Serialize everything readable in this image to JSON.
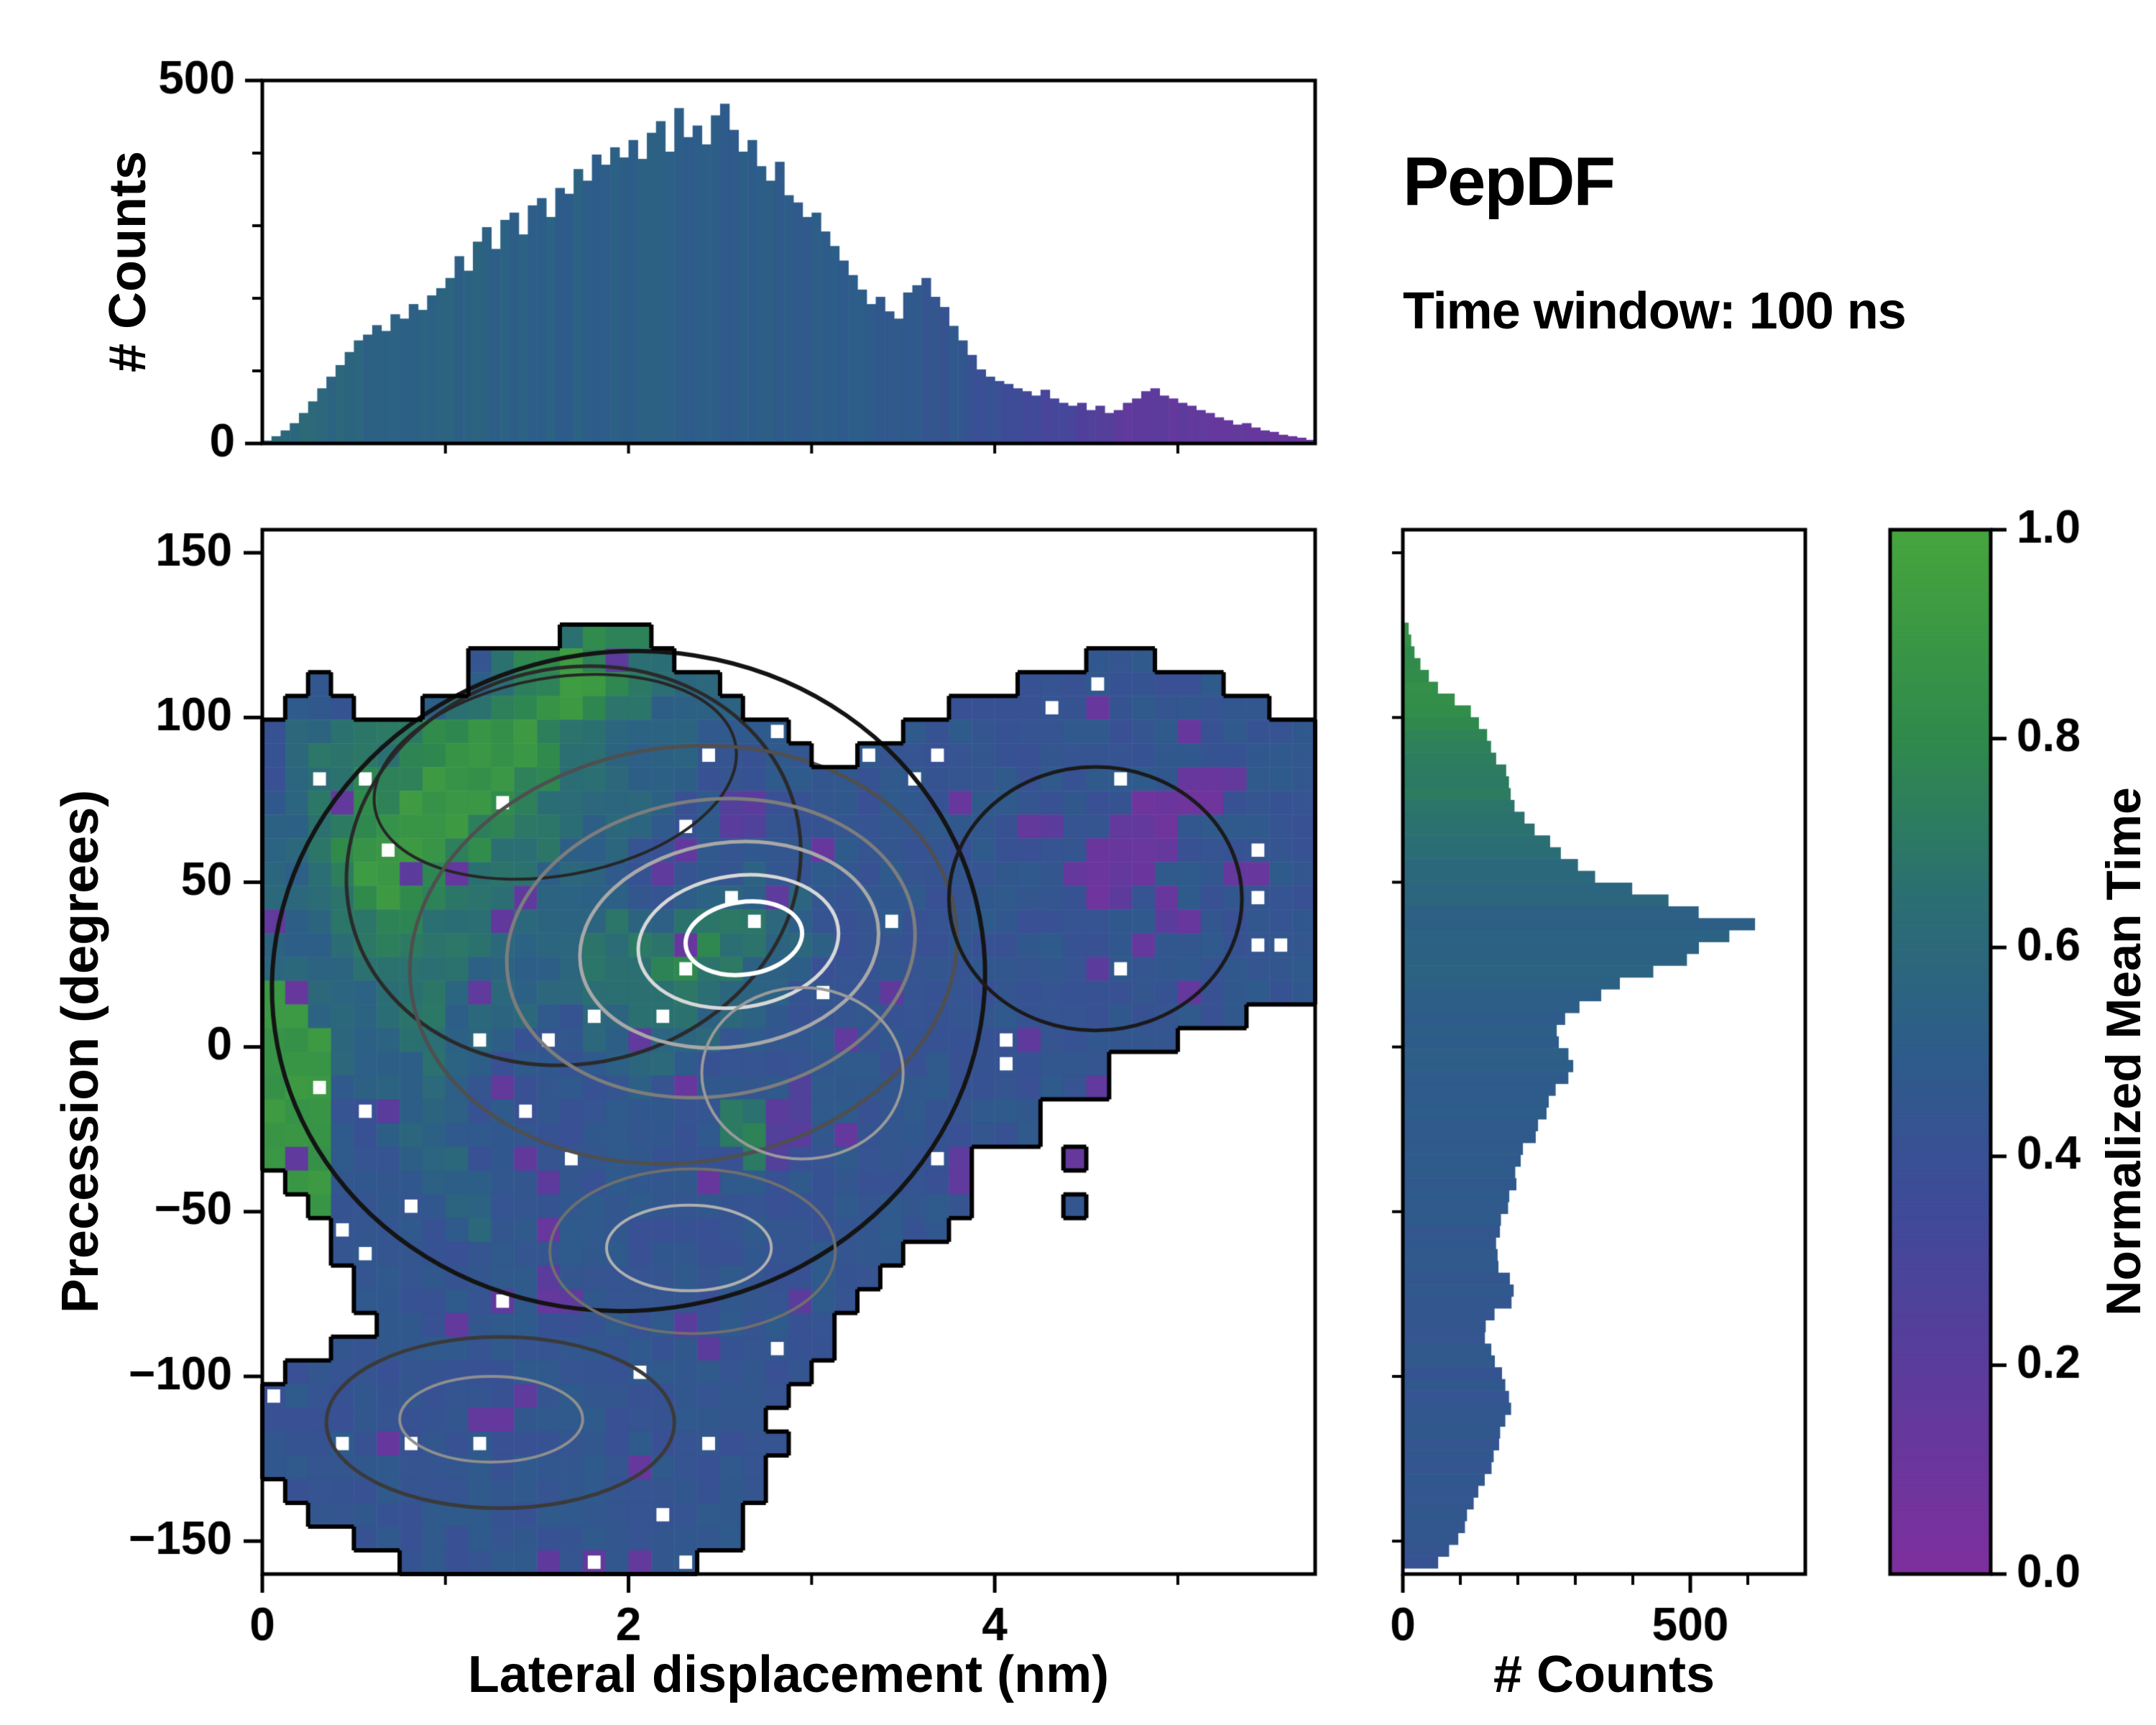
{
  "labels": {
    "title": "PepDF",
    "subtitle": "Time window: 100 ns",
    "top_hist_ylabel": "# Counts",
    "main_ylabel": "Precession (degrees)",
    "main_xlabel": "Lateral displacement (nm)",
    "right_hist_xlabel": "# Counts",
    "colorbar_label": "Normalized Mean Time"
  },
  "chart_data": [
    {
      "type": "bar",
      "name": "top-marginal-histogram",
      "xlabel": "Lateral displacement (nm)",
      "ylabel": "# Counts",
      "xlim": [
        0,
        5.75
      ],
      "ylim": [
        0,
        500
      ],
      "x_start": 0.025,
      "bin_width": 0.05,
      "counts": [
        4,
        10,
        18,
        28,
        42,
        58,
        76,
        92,
        108,
        126,
        142,
        150,
        163,
        155,
        178,
        172,
        192,
        184,
        204,
        214,
        228,
        258,
        238,
        278,
        298,
        268,
        308,
        318,
        288,
        328,
        338,
        312,
        352,
        344,
        378,
        362,
        398,
        384,
        408,
        394,
        418,
        392,
        428,
        444,
        402,
        462,
        422,
        438,
        412,
        452,
        468,
        432,
        402,
        418,
        382,
        362,
        388,
        342,
        332,
        312,
        318,
        292,
        272,
        252,
        232,
        212,
        192,
        202,
        182,
        172,
        208,
        218,
        228,
        202,
        188,
        162,
        142,
        122,
        102,
        92,
        86,
        82,
        76,
        72,
        66,
        74,
        62,
        56,
        52,
        56,
        46,
        52,
        42,
        46,
        56,
        62,
        72,
        76,
        66,
        62,
        56,
        52,
        46,
        42,
        36,
        32,
        26,
        28,
        22,
        18,
        16,
        12,
        10,
        8,
        5
      ],
      "color_value_stops": [
        [
          0,
          0.6
        ],
        [
          0.6,
          0.55
        ],
        [
          2.8,
          0.5
        ],
        [
          3.6,
          0.48
        ],
        [
          4.2,
          0.35
        ],
        [
          4.7,
          0.18
        ],
        [
          5.75,
          0.12
        ]
      ],
      "yticks": [
        {
          "v": 0,
          "label": "0"
        },
        {
          "v": 500,
          "label": "500"
        }
      ],
      "yticks_minor": [
        100,
        200,
        300,
        400
      ],
      "xticks_minor": [
        1,
        2,
        3,
        4,
        5
      ]
    },
    {
      "type": "heatmap",
      "name": "main-2d-histogram",
      "title": "PepDF",
      "subtitle": "Time window: 100 ns",
      "xlabel": "Lateral displacement (nm)",
      "ylabel": "Precession (degrees)",
      "color_label": "Normalized Mean Time",
      "xlim": [
        0,
        5.75
      ],
      "ylim": [
        -160,
        157
      ],
      "grid_cols": 46,
      "grid_rows": 44,
      "encoding": "digit/9 = normalized mean time of bin; '.' = no data",
      "grid": [
        "..............................................",
        "..............................................",
        "..............................................",
        "..............................................",
        ".............6777.............................",
        ".........467787766..................444.......",
        "..4......56778876655.............444444444....",
        ".444...56677887665555.........44444444444444..",
        "45566667788876655554444.....444444444444444444",
        "456666778888766555544444..44444444444444444444",
        "4566777888877665555444444444444444444444111444",
        "4566778888776655554422444444444444444411114444",
        "5566788887766655544422444444444444444111444444",
        "5567888877666555444444444444444444441111444444",
        "5567888776665554444445444444444444411114444444",
        "5566787766665555445555554444444444441144444444",
        "5556677666655556556666554444444444444444144444",
        "5556676666555566667766555444444444444414444444",
        "5555666665555566677665554444444444444444444444",
        "8855566655555566666655544444444444444444444444",
        "8855566655554455666555444444444444444444444...",
        "8885556655544455555544444444444444444444......",
        "8885555655444445554444444444444444444.........",
        "8884555554444444544444424444444444444.........",
        "8884455554444444444466224444444444............",
        "8884455544444444444467224444444444............",
        "8884445554444444444446244444444....4..........",
        ".884444555444444444444444444444...............",
        "..84444455444444444444444444444....4..........",
        "...444444544444444444444444444................",
        "...4444444444444444444444444..................",
        "....44444444444444444444444...................",
        "....4444444444444444444444....................",
        ".....44444444444444444444.....................",
        "...4444444444444444444444.....................",
        ".44444444444444444444444......................",
        "44444444444444444444444.......................",
        "4444444444444444444444........................",
        "44444444444444444444444.......................",
        "4444444444444444444444........................",
        ".444444444444444444444........................",
        "..4444444444444444444.........................",
        "....44444444444444444.........................",
        "......4444444444444..........................."
      ],
      "contours": [
        {
          "cx": 2.0,
          "cy": 20,
          "rx": 1.95,
          "ry": 100,
          "rot": -8,
          "color": "#141414",
          "w": 6
        },
        {
          "cx": 1.7,
          "cy": 55,
          "rx": 1.25,
          "ry": 60,
          "rot": -14,
          "color": "#2a2a2a",
          "w": 5
        },
        {
          "cx": 1.6,
          "cy": 82,
          "rx": 1.0,
          "ry": 30,
          "rot": -10,
          "color": "#262626",
          "w": 4
        },
        {
          "cx": 2.3,
          "cy": 28,
          "rx": 1.5,
          "ry": 63,
          "rot": -8,
          "color": "#4f4f4f",
          "w": 5
        },
        {
          "cx": 2.45,
          "cy": 30,
          "rx": 1.12,
          "ry": 45,
          "rot": -8,
          "color": "#7d7d7d",
          "w": 5
        },
        {
          "cx": 2.55,
          "cy": 31,
          "rx": 0.82,
          "ry": 31,
          "rot": -8,
          "color": "#a8a8a8",
          "w": 5
        },
        {
          "cx": 2.6,
          "cy": 32,
          "rx": 0.55,
          "ry": 20,
          "rot": -8,
          "color": "#d8d8d8",
          "w": 5
        },
        {
          "cx": 2.63,
          "cy": 33,
          "rx": 0.32,
          "ry": 11,
          "rot": -8,
          "color": "#ffffff",
          "w": 6
        },
        {
          "cx": 2.95,
          "cy": -8,
          "rx": 0.55,
          "ry": 26,
          "rot": 0,
          "color": "#9a9a9a",
          "w": 4
        },
        {
          "cx": 2.35,
          "cy": -62,
          "rx": 0.78,
          "ry": 25,
          "rot": 0,
          "color": "#6f6f6f",
          "w": 4
        },
        {
          "cx": 2.33,
          "cy": -61,
          "rx": 0.45,
          "ry": 13,
          "rot": 0,
          "color": "#b0b0b0",
          "w": 4
        },
        {
          "cx": 1.3,
          "cy": -114,
          "rx": 0.95,
          "ry": 26,
          "rot": 0,
          "color": "#3a3a3a",
          "w": 5
        },
        {
          "cx": 1.25,
          "cy": -113,
          "rx": 0.5,
          "ry": 13,
          "rot": 0,
          "color": "#8f8f8f",
          "w": 4
        },
        {
          "cx": 4.55,
          "cy": 45,
          "rx": 0.8,
          "ry": 40,
          "rot": 0,
          "color": "#1a1a1a",
          "w": 5
        }
      ],
      "xticks": [
        {
          "v": 0,
          "label": "0"
        },
        {
          "v": 2,
          "label": "2"
        },
        {
          "v": 4,
          "label": "4"
        }
      ],
      "xticks_minor": [
        1,
        3,
        5
      ],
      "yticks": [
        {
          "v": 150,
          "label": "150"
        },
        {
          "v": 100,
          "label": "100"
        },
        {
          "v": 50,
          "label": "50"
        },
        {
          "v": 0,
          "label": "0"
        },
        {
          "v": -50,
          "label": "−50"
        },
        {
          "v": -100,
          "label": "−100"
        },
        {
          "v": -150,
          "label": "−150"
        }
      ],
      "colormap": {
        "stops": [
          [
            0,
            "#7e2f9e"
          ],
          [
            0.2,
            "#5a3c9c"
          ],
          [
            0.35,
            "#3f4a99"
          ],
          [
            0.5,
            "#2d5c8a"
          ],
          [
            0.65,
            "#2b6f72"
          ],
          [
            0.8,
            "#2f8a4c"
          ],
          [
            1,
            "#46a53d"
          ]
        ]
      }
    },
    {
      "type": "bar",
      "name": "right-marginal-histogram",
      "orientation": "horizontal",
      "xlabel": "# Counts",
      "ylabel": "Precession (degrees)",
      "xlim": [
        0,
        700
      ],
      "ylim": [
        -160,
        157
      ],
      "y_start": 127,
      "bin_step": -3.5875,
      "counts": [
        10,
        15,
        20,
        30,
        45,
        60,
        90,
        120,
        135,
        150,
        155,
        165,
        175,
        185,
        190,
        200,
        215,
        235,
        255,
        280,
        310,
        340,
        390,
        450,
        520,
        620,
        580,
        530,
        480,
        430,
        380,
        340,
        310,
        290,
        275,
        265,
        285,
        300,
        290,
        270,
        255,
        245,
        235,
        225,
        215,
        205,
        200,
        195,
        185,
        180,
        175,
        170,
        165,
        165,
        170,
        185,
        195,
        185,
        160,
        145,
        140,
        150,
        160,
        170,
        175,
        185,
        190,
        180,
        170,
        165,
        155,
        150,
        145,
        135,
        125,
        115,
        105,
        95,
        80,
        60
      ],
      "color_value_stops_y": [
        [
          -160,
          0.44
        ],
        [
          -100,
          0.45
        ],
        [
          -40,
          0.48
        ],
        [
          0,
          0.5
        ],
        [
          20,
          0.52
        ],
        [
          40,
          0.55
        ],
        [
          60,
          0.62
        ],
        [
          80,
          0.72
        ],
        [
          100,
          0.8
        ],
        [
          127,
          0.85
        ]
      ],
      "xticks": [
        {
          "v": 0,
          "label": "0"
        },
        {
          "v": 500,
          "label": "500"
        }
      ],
      "xticks_minor": [
        100,
        200,
        300,
        400,
        600
      ],
      "yticks_minor": [
        -150,
        -100,
        -50,
        0,
        50,
        100,
        150
      ]
    },
    {
      "type": "colorbar",
      "name": "colorbar",
      "label": "Normalized Mean Time",
      "range": [
        0,
        1
      ],
      "ticks": [
        {
          "v": 0,
          "label": "0.0"
        },
        {
          "v": 0.2,
          "label": "0.2"
        },
        {
          "v": 0.4,
          "label": "0.4"
        },
        {
          "v": 0.6,
          "label": "0.6"
        },
        {
          "v": 0.8,
          "label": "0.8"
        },
        {
          "v": 1,
          "label": "1.0"
        }
      ]
    }
  ]
}
